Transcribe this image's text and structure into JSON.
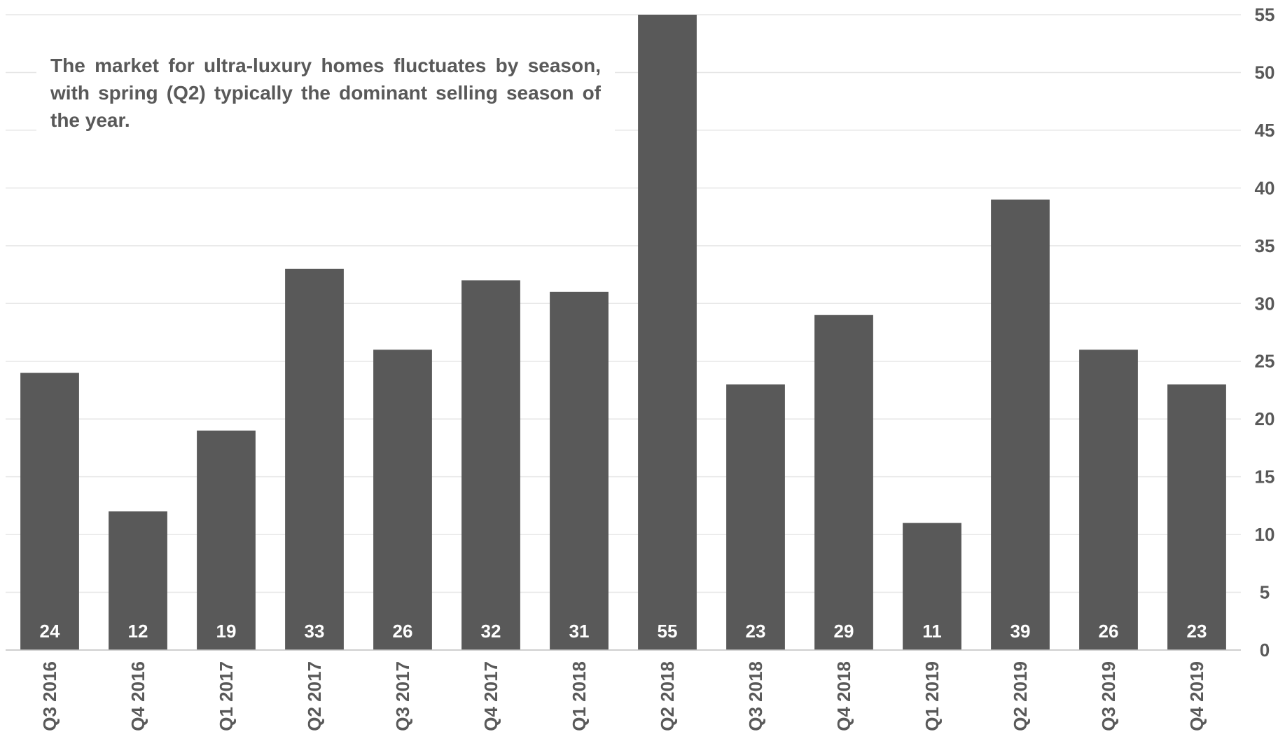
{
  "chart_data": {
    "type": "bar",
    "categories": [
      "Q3 2016",
      "Q4 2016",
      "Q1 2017",
      "Q2 2017",
      "Q3 2017",
      "Q4 2017",
      "Q1 2018",
      "Q2 2018",
      "Q3 2018",
      "Q4 2018",
      "Q1 2019",
      "Q2 2019",
      "Q3 2019",
      "Q4 2019"
    ],
    "values": [
      24,
      12,
      19,
      33,
      26,
      32,
      31,
      55,
      23,
      29,
      11,
      39,
      26,
      23
    ],
    "data_labels": [
      "24",
      "12",
      "19",
      "33",
      "26",
      "32",
      "31",
      "55",
      "23",
      "29",
      "11",
      "39",
      "26",
      "23"
    ],
    "title": "",
    "xlabel": "",
    "ylabel": "",
    "ylim": [
      0,
      55
    ],
    "yticks": [
      0,
      5,
      10,
      15,
      20,
      25,
      30,
      35,
      40,
      45,
      50,
      55
    ],
    "y_axis_side": "right",
    "grid": true,
    "legend": "none",
    "annotation": "The market for ultra-luxury homes fluctuates by season, with spring (Q2) typically the dominant selling season of the year.",
    "colors": {
      "bar": "#595959",
      "bar_label": "#ffffff",
      "tick_label": "#595959",
      "grid": "#e6e6e6",
      "axis": "#bfbfbf"
    }
  }
}
